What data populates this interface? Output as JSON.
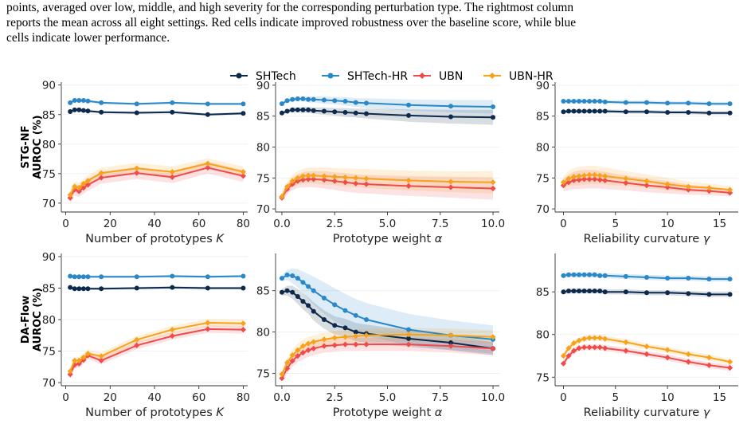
{
  "caption": {
    "lines": [
      "points, averaged over low, middle, and high severity for the corresponding perturbation type. The rightmost column",
      "reports the mean across all eight settings. Red cells indicate improved robustness over the baseline score, while blue",
      "cells indicate lower performance."
    ]
  },
  "colors": {
    "SHTech": "#0d2a4d",
    "SHTech-HR": "#2a87c8",
    "UBN": "#ef4b4b",
    "UBN-HR": "#f7a21a"
  },
  "legend": [
    "SHTech",
    "SHTech-HR",
    "UBN",
    "UBN-HR"
  ],
  "row_labels": [
    [
      "STG-NF",
      "AUROC (%)"
    ],
    [
      "DA-Flow",
      "AUROC (%)"
    ]
  ],
  "chart_data": [
    {
      "type": "line",
      "id": "stgnf-k",
      "row": 0,
      "col": 0,
      "xlabel": "Number of prototypes K",
      "xlim": [
        -2,
        82
      ],
      "ylim": [
        68.5,
        90.5
      ],
      "xticks": [
        0,
        20,
        40,
        60,
        80
      ],
      "yticks": [
        70,
        75,
        80,
        85,
        90
      ],
      "x": [
        2,
        4,
        6,
        8,
        10,
        16,
        32,
        48,
        64,
        80
      ],
      "series": [
        {
          "name": "SHTech",
          "values": [
            85.5,
            85.8,
            85.8,
            85.7,
            85.6,
            85.4,
            85.3,
            85.4,
            85.0,
            85.2
          ],
          "band": 0.2
        },
        {
          "name": "SHTech-HR",
          "values": [
            87.0,
            87.4,
            87.4,
            87.4,
            87.3,
            87.0,
            86.8,
            87.0,
            86.8,
            86.8
          ],
          "band": 0.2
        },
        {
          "name": "UBN",
          "values": [
            70.9,
            72.3,
            72.0,
            72.6,
            73.1,
            74.3,
            75.1,
            74.4,
            76.0,
            74.6
          ],
          "band": 1.0
        },
        {
          "name": "UBN-HR",
          "values": [
            71.4,
            72.8,
            72.6,
            73.3,
            73.8,
            75.1,
            75.9,
            75.3,
            76.7,
            75.3
          ],
          "band": 0.9
        }
      ]
    },
    {
      "type": "line",
      "id": "stgnf-a",
      "row": 0,
      "col": 1,
      "xlabel": "Prototype weight α",
      "xlim": [
        -0.3,
        10.3
      ],
      "ylim": [
        69.5,
        90.5
      ],
      "xticks": [
        0.0,
        2.5,
        5.0,
        7.5,
        10.0
      ],
      "xticklabels": [
        "0.0",
        "2.5",
        "5.0",
        "7.5",
        "10.0"
      ],
      "yticks": [
        70,
        75,
        80,
        85,
        90
      ],
      "x": [
        0,
        0.25,
        0.5,
        0.75,
        1.0,
        1.25,
        1.5,
        2.0,
        2.5,
        3.0,
        3.5,
        4.0,
        6.0,
        8.0,
        10.0
      ],
      "series": [
        {
          "name": "SHTech",
          "values": [
            85.5,
            85.8,
            86.0,
            86.0,
            86.0,
            86.0,
            85.9,
            85.8,
            85.7,
            85.6,
            85.5,
            85.4,
            85.1,
            84.9,
            84.8
          ],
          "band": [
            0.2,
            0.3,
            0.4,
            0.4,
            0.5,
            0.5,
            0.5,
            0.6,
            0.6,
            0.7,
            0.7,
            0.8,
            1.0,
            1.1,
            1.2
          ]
        },
        {
          "name": "SHTech-HR",
          "values": [
            87.0,
            87.5,
            87.7,
            87.8,
            87.8,
            87.7,
            87.7,
            87.6,
            87.5,
            87.4,
            87.2,
            87.1,
            86.8,
            86.6,
            86.5
          ],
          "band": [
            0.2,
            0.3,
            0.3,
            0.4,
            0.4,
            0.5,
            0.5,
            0.6,
            0.6,
            0.7,
            0.7,
            0.8,
            0.9,
            1.0,
            1.1
          ]
        },
        {
          "name": "UBN",
          "values": [
            71.8,
            73.2,
            74.0,
            74.5,
            74.7,
            74.8,
            74.8,
            74.7,
            74.5,
            74.3,
            74.1,
            74.0,
            73.7,
            73.5,
            73.3
          ],
          "band": [
            0.6,
            0.8,
            1.0,
            1.1,
            1.2,
            1.3,
            1.3,
            1.4,
            1.4,
            1.5,
            1.5,
            1.5,
            1.6,
            1.7,
            1.8
          ]
        },
        {
          "name": "UBN-HR",
          "values": [
            72.0,
            73.6,
            74.5,
            75.0,
            75.3,
            75.4,
            75.4,
            75.3,
            75.2,
            75.1,
            75.0,
            74.9,
            74.6,
            74.4,
            74.3
          ],
          "band": [
            0.6,
            0.8,
            1.0,
            1.1,
            1.2,
            1.3,
            1.3,
            1.4,
            1.4,
            1.5,
            1.5,
            1.5,
            1.6,
            1.7,
            1.8
          ]
        }
      ]
    },
    {
      "type": "line",
      "id": "stgnf-g",
      "row": 0,
      "col": 2,
      "xlabel": "Reliability curvature γ",
      "xlim": [
        -0.8,
        16.8
      ],
      "ylim": [
        69.5,
        90.5
      ],
      "xticks": [
        0,
        5,
        10,
        15
      ],
      "yticks": [
        70,
        75,
        80,
        85,
        90
      ],
      "x": [
        0,
        0.5,
        1.0,
        1.5,
        2.0,
        2.5,
        3.0,
        3.5,
        4.0,
        6.0,
        8.0,
        10.0,
        12.0,
        14.0,
        16.0
      ],
      "series": [
        {
          "name": "SHTech",
          "values": [
            85.7,
            85.8,
            85.8,
            85.8,
            85.8,
            85.8,
            85.8,
            85.8,
            85.8,
            85.7,
            85.7,
            85.6,
            85.6,
            85.5,
            85.5
          ],
          "band": 0.3
        },
        {
          "name": "SHTech-HR",
          "values": [
            87.4,
            87.4,
            87.4,
            87.4,
            87.4,
            87.4,
            87.4,
            87.4,
            87.3,
            87.2,
            87.2,
            87.1,
            87.1,
            87.0,
            87.0
          ],
          "band": 0.3
        },
        {
          "name": "UBN",
          "values": [
            73.8,
            74.3,
            74.6,
            74.7,
            74.8,
            74.8,
            74.8,
            74.7,
            74.6,
            74.2,
            73.8,
            73.5,
            73.1,
            72.9,
            72.6
          ],
          "band": [
            1.0,
            1.2,
            1.4,
            1.5,
            1.5,
            1.5,
            1.5,
            1.4,
            1.4,
            1.2,
            1.1,
            1.0,
            0.8,
            0.7,
            0.6
          ]
        },
        {
          "name": "UBN-HR",
          "values": [
            74.3,
            74.9,
            75.2,
            75.3,
            75.4,
            75.5,
            75.5,
            75.4,
            75.3,
            74.9,
            74.5,
            74.0,
            73.6,
            73.4,
            73.1
          ],
          "band": [
            1.0,
            1.2,
            1.4,
            1.5,
            1.5,
            1.5,
            1.5,
            1.4,
            1.4,
            1.2,
            1.1,
            1.0,
            0.8,
            0.7,
            0.6
          ]
        }
      ]
    },
    {
      "type": "line",
      "id": "daflow-k",
      "row": 1,
      "col": 0,
      "xlabel": "Number of prototypes K",
      "xlim": [
        -2,
        82
      ],
      "ylim": [
        69.5,
        90.5
      ],
      "xticks": [
        0,
        20,
        40,
        60,
        80
      ],
      "yticks": [
        70,
        75,
        80,
        85,
        90
      ],
      "x": [
        2,
        4,
        6,
        8,
        10,
        16,
        32,
        48,
        64,
        80
      ],
      "series": [
        {
          "name": "SHTech",
          "values": [
            85.1,
            84.9,
            84.9,
            84.9,
            84.9,
            84.9,
            85.0,
            85.1,
            85.0,
            85.0
          ],
          "band": 0.2
        },
        {
          "name": "SHTech-HR",
          "values": [
            86.9,
            86.8,
            86.8,
            86.8,
            86.8,
            86.8,
            86.8,
            86.9,
            86.8,
            86.9
          ],
          "band": 0.2
        },
        {
          "name": "UBN",
          "values": [
            71.3,
            72.8,
            73.0,
            73.6,
            74.3,
            73.5,
            75.9,
            77.4,
            78.5,
            78.4
          ],
          "band": 0.6
        },
        {
          "name": "UBN-HR",
          "values": [
            71.8,
            73.5,
            73.5,
            74.0,
            74.6,
            74.2,
            76.8,
            78.4,
            79.5,
            79.4
          ],
          "band": 0.6
        }
      ]
    },
    {
      "type": "line",
      "id": "daflow-a",
      "row": 1,
      "col": 1,
      "xlabel": "Prototype weight α",
      "xlim": [
        -0.3,
        10.3
      ],
      "ylim": [
        73.5,
        89.5
      ],
      "xticks": [
        0.0,
        2.5,
        5.0,
        7.5,
        10.0
      ],
      "xticklabels": [
        "0.0",
        "2.5",
        "5.0",
        "7.5",
        "10.0"
      ],
      "yticks": [
        75,
        80,
        85
      ],
      "x": [
        0,
        0.25,
        0.5,
        0.75,
        1.0,
        1.25,
        1.5,
        2.0,
        2.5,
        3.0,
        3.5,
        4.0,
        6.0,
        8.0,
        10.0
      ],
      "series": [
        {
          "name": "SHTech",
          "values": [
            84.8,
            85.0,
            84.8,
            84.3,
            83.7,
            83.2,
            82.5,
            81.5,
            80.8,
            80.5,
            80.0,
            79.8,
            79.2,
            78.7,
            78.0
          ],
          "band": [
            0.4,
            0.6,
            0.8,
            0.9,
            1.0,
            1.0,
            1.1,
            1.1,
            1.1,
            1.1,
            1.1,
            1.1,
            1.0,
            0.9,
            0.8
          ]
        },
        {
          "name": "SHTech-HR",
          "values": [
            86.5,
            86.9,
            86.8,
            86.5,
            86.0,
            85.5,
            85.0,
            84.1,
            83.3,
            82.6,
            82.0,
            81.5,
            80.3,
            79.6,
            79.1
          ],
          "band": [
            0.4,
            0.6,
            0.9,
            1.1,
            1.3,
            1.5,
            1.7,
            1.9,
            2.0,
            2.0,
            2.0,
            2.0,
            1.9,
            1.8,
            1.7
          ]
        },
        {
          "name": "UBN",
          "values": [
            74.4,
            75.6,
            76.5,
            77.1,
            77.5,
            77.8,
            78.0,
            78.3,
            78.4,
            78.5,
            78.5,
            78.5,
            78.5,
            78.3,
            78.0
          ],
          "band": [
            0.4,
            0.6,
            0.7,
            0.8,
            0.8,
            0.8,
            0.8,
            0.8,
            0.8,
            0.8,
            0.8,
            0.8,
            0.8,
            0.8,
            0.8
          ]
        },
        {
          "name": "UBN-HR",
          "values": [
            74.9,
            76.3,
            77.2,
            77.8,
            78.3,
            78.6,
            78.8,
            79.1,
            79.3,
            79.4,
            79.5,
            79.6,
            79.7,
            79.6,
            79.4
          ],
          "band": [
            0.4,
            0.6,
            0.7,
            0.8,
            0.8,
            0.8,
            0.8,
            0.8,
            0.8,
            0.8,
            0.8,
            0.8,
            0.8,
            0.8,
            0.8
          ]
        }
      ]
    },
    {
      "type": "line",
      "id": "daflow-g",
      "row": 1,
      "col": 2,
      "xlabel": "Reliability curvature γ",
      "xlim": [
        -0.8,
        16.8
      ],
      "ylim": [
        74.0,
        89.5
      ],
      "xticks": [
        0,
        5,
        10,
        15
      ],
      "yticks": [
        75,
        80,
        85
      ],
      "x": [
        0,
        0.5,
        1.0,
        1.5,
        2.0,
        2.5,
        3.0,
        3.5,
        4.0,
        6.0,
        8.0,
        10.0,
        12.0,
        14.0,
        16.0
      ],
      "series": [
        {
          "name": "SHTech",
          "values": [
            85.0,
            85.1,
            85.1,
            85.1,
            85.1,
            85.1,
            85.1,
            85.1,
            85.0,
            85.0,
            84.9,
            84.9,
            84.8,
            84.7,
            84.7
          ],
          "band": 0.3
        },
        {
          "name": "SHTech-HR",
          "values": [
            86.9,
            87.0,
            87.0,
            87.0,
            87.0,
            87.0,
            87.0,
            86.9,
            86.9,
            86.8,
            86.7,
            86.6,
            86.6,
            86.5,
            86.5
          ],
          "band": 0.3
        },
        {
          "name": "UBN",
          "values": [
            76.6,
            77.5,
            78.1,
            78.4,
            78.5,
            78.5,
            78.5,
            78.5,
            78.4,
            78.1,
            77.7,
            77.3,
            76.8,
            76.4,
            76.1
          ],
          "band": 0.35
        },
        {
          "name": "UBN-HR",
          "values": [
            77.5,
            78.4,
            79.0,
            79.3,
            79.5,
            79.6,
            79.6,
            79.6,
            79.5,
            79.1,
            78.6,
            78.2,
            77.7,
            77.3,
            76.8
          ],
          "band": 0.35
        }
      ]
    }
  ]
}
